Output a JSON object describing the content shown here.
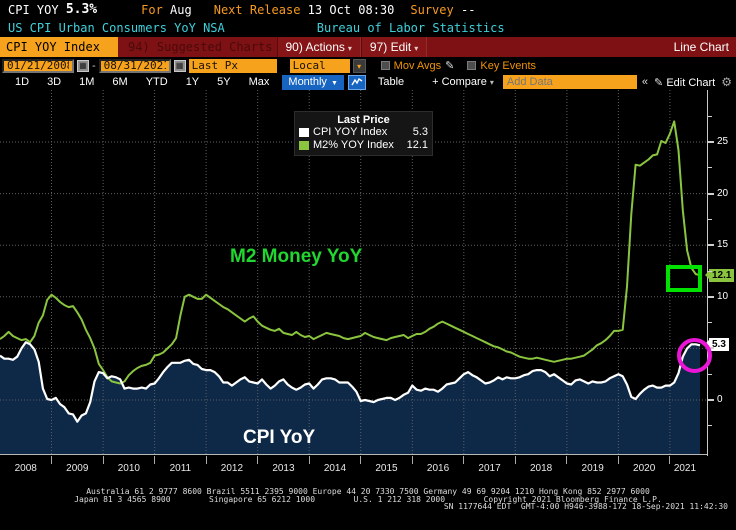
{
  "header": {
    "security": "CPI YOY",
    "last_value": "5.3%",
    "for_label": "For",
    "for_value": "Aug",
    "next_release_label": "Next Release",
    "next_release_value": "13 Oct 08:30",
    "survey_label": "Survey",
    "survey_value": "--",
    "description": "US CPI Urban Consumers YoY NSA",
    "source": "Bureau of Labor Statistics"
  },
  "menubar": {
    "ticker_tab": "CPI YOY Index",
    "suggested_charts": "94) Suggested Charts",
    "actions": "90) Actions",
    "edit": "97) Edit",
    "chart_type": "Line Chart"
  },
  "toolbar": {
    "date_from": "01/21/2008",
    "date_separator": "-",
    "date_to": "08/31/2021",
    "price_field": "Last Px",
    "currency": "Local CCY",
    "mov_avgs_label": "Mov Avgs",
    "key_events_label": "Key Events"
  },
  "periodbar": {
    "ranges": [
      "1D",
      "3D",
      "1M",
      "6M",
      "YTD",
      "1Y",
      "5Y",
      "Max"
    ],
    "frequency": "Monthly",
    "table_label": "Table",
    "compare_label": "+ Compare",
    "add_data_placeholder": "Add Data",
    "edit_chart_label": "Edit Chart"
  },
  "icons": {
    "dropdown_arrow": "▾",
    "freq_arrow": "▼",
    "calendar_glyph": "▦",
    "pencil": "✎",
    "gear": "⚙",
    "collapse": "«"
  },
  "legend": {
    "title": "Last Price",
    "items": [
      {
        "label": "CPI YOY Index",
        "value": "5.3",
        "color": "#ffffff"
      },
      {
        "label": "M2% YOY Index",
        "value": "12.1",
        "color": "#8bc53f"
      }
    ]
  },
  "annotations": {
    "m2_label": "M2 Money YoY",
    "cpi_label": "CPI YoY",
    "m2_badge": "12.1",
    "cpi_badge": "5.3"
  },
  "colors": {
    "accent_orange": "#f7a21c",
    "maroon_bar": "#7e1113",
    "cyan_text": "#3fd0da",
    "blue_selected": "#1765c0",
    "m2_green": "#8bc53f",
    "annotation_green": "#00e100",
    "annotation_magenta": "#ea15d7",
    "cpi_fill_navy": "#0d2947"
  },
  "footer": {
    "line1": "Australia 61 2 9777 8600 Brazil 5511 2395 9000 Europe 44 20 7330 7500 Germany 49 69 9204 1210 Hong Kong 852 2977 6000",
    "line2": "Japan 81 3 4565 8900        Singapore 65 6212 1000        U.S. 1 212 318 2000        Copyright 2021 Bloomberg Finance L.P.",
    "line3": "SN 1177644 EDT  GMT-4:00 H946-3988-172 18-Sep-2021 11:42:30"
  },
  "chart_data": {
    "type": "line",
    "x_start": "2008-01",
    "x_end": "2021-08",
    "frequency": "monthly",
    "x_tick_labels": [
      "2008",
      "2009",
      "2010",
      "2011",
      "2012",
      "2013",
      "2014",
      "2015",
      "2016",
      "2017",
      "2018",
      "2019",
      "2020",
      "2021"
    ],
    "y_ticks": [
      0,
      5,
      10,
      15,
      20,
      25
    ],
    "y_minor_ticks": [
      -2.5,
      2.5,
      7.5,
      12.5,
      17.5,
      22.5,
      27.5
    ],
    "ylim": [
      -5.3,
      30
    ],
    "grid": true,
    "legend_position": "top-center",
    "series": [
      {
        "name": "CPI YOY Index",
        "color": "#ffffff",
        "style": "area",
        "fill": "#0d2947",
        "last": 5.3,
        "values": [
          4.3,
          4.0,
          4.0,
          3.9,
          4.2,
          5.0,
          5.6,
          5.4,
          4.9,
          3.7,
          1.1,
          0.1,
          0.0,
          0.2,
          -0.4,
          -0.7,
          -1.3,
          -1.4,
          -2.1,
          -1.5,
          -1.3,
          -0.2,
          1.8,
          2.7,
          2.6,
          2.1,
          2.3,
          2.2,
          2.0,
          1.1,
          1.2,
          1.1,
          1.1,
          1.2,
          1.1,
          1.5,
          1.6,
          2.1,
          2.7,
          3.2,
          3.6,
          3.6,
          3.6,
          3.8,
          3.9,
          3.5,
          3.4,
          3.0,
          2.9,
          2.9,
          2.7,
          2.3,
          1.7,
          1.7,
          1.4,
          1.7,
          2.0,
          2.2,
          1.8,
          1.7,
          1.6,
          2.0,
          1.5,
          1.1,
          1.4,
          1.8,
          2.0,
          1.5,
          1.2,
          1.0,
          1.2,
          1.5,
          1.6,
          1.1,
          1.5,
          2.0,
          2.1,
          2.1,
          2.0,
          1.7,
          1.7,
          1.7,
          1.3,
          0.8,
          -0.1,
          0.0,
          -0.1,
          -0.2,
          0.0,
          0.1,
          0.2,
          0.2,
          0.0,
          0.2,
          0.5,
          0.7,
          1.4,
          1.0,
          0.9,
          1.1,
          1.0,
          1.0,
          0.8,
          1.1,
          1.5,
          1.6,
          1.7,
          2.1,
          2.5,
          2.7,
          2.4,
          2.2,
          1.9,
          1.6,
          1.7,
          1.9,
          2.2,
          2.0,
          2.2,
          2.1,
          2.1,
          2.2,
          2.4,
          2.5,
          2.8,
          2.9,
          2.9,
          2.7,
          2.3,
          2.5,
          2.2,
          1.9,
          1.6,
          1.5,
          1.9,
          2.0,
          1.8,
          1.6,
          1.8,
          1.7,
          1.7,
          1.8,
          2.1,
          2.3,
          2.5,
          2.3,
          1.5,
          0.3,
          0.1,
          0.6,
          1.0,
          1.3,
          1.4,
          1.2,
          1.2,
          1.4,
          1.4,
          1.7,
          2.6,
          4.2,
          5.0,
          5.4,
          5.4,
          5.3
        ]
      },
      {
        "name": "M2% YOY Index",
        "color": "#8bc53f",
        "style": "line",
        "last": 12.1,
        "values": [
          5.9,
          6.2,
          6.6,
          6.2,
          6.0,
          5.8,
          5.9,
          5.6,
          6.2,
          7.5,
          8.2,
          9.7,
          10.2,
          9.9,
          9.5,
          9.2,
          9.0,
          9.1,
          8.5,
          7.8,
          6.8,
          6.0,
          5.0,
          3.5,
          2.9,
          2.2,
          1.8,
          1.7,
          1.6,
          1.8,
          2.4,
          2.8,
          3.1,
          3.3,
          3.4,
          3.6,
          4.3,
          4.4,
          4.6,
          5.0,
          5.4,
          6.0,
          8.2,
          10.0,
          10.2,
          10.0,
          9.8,
          9.8,
          10.2,
          9.9,
          9.6,
          9.3,
          9.0,
          8.8,
          8.5,
          8.2,
          7.9,
          7.6,
          7.9,
          8.1,
          7.6,
          7.2,
          7.0,
          6.8,
          6.7,
          6.9,
          6.5,
          6.4,
          6.3,
          6.6,
          6.3,
          6.1,
          6.2,
          5.9,
          6.1,
          6.3,
          6.5,
          6.4,
          6.3,
          6.2,
          6.0,
          5.9,
          6.0,
          6.1,
          6.2,
          6.5,
          6.3,
          6.1,
          6.0,
          5.9,
          5.8,
          6.0,
          6.1,
          6.2,
          6.3,
          6.0,
          6.2,
          6.4,
          6.4,
          6.6,
          6.9,
          7.1,
          7.4,
          7.6,
          7.4,
          7.2,
          7.0,
          6.8,
          6.6,
          6.4,
          6.2,
          6.0,
          5.8,
          5.6,
          5.4,
          5.2,
          5.1,
          4.9,
          4.7,
          4.6,
          4.4,
          4.2,
          4.1,
          4.0,
          4.0,
          4.1,
          4.0,
          3.9,
          3.8,
          3.7,
          3.8,
          3.9,
          4.0,
          4.0,
          4.1,
          4.2,
          4.3,
          4.6,
          4.9,
          5.3,
          5.5,
          5.8,
          6.2,
          6.7,
          6.7,
          6.8,
          11.0,
          18.0,
          22.8,
          22.7,
          23.0,
          23.3,
          23.7,
          23.8,
          25.1,
          24.9,
          25.8,
          27.0,
          24.2,
          18.4,
          14.5,
          12.8,
          12.2,
          12.1
        ]
      }
    ]
  }
}
